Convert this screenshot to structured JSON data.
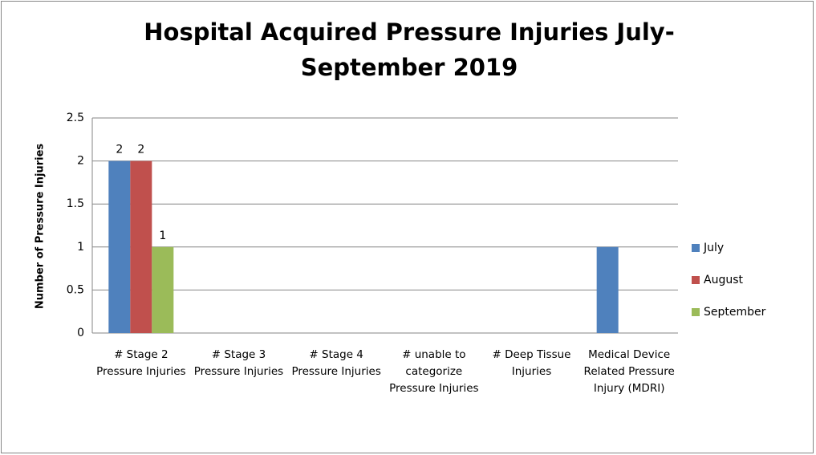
{
  "chart_data": {
    "type": "bar",
    "title": "Hospital Acquired Pressure Injuries July-September 2019",
    "y_label": "Number of Pressure Injuries",
    "categories": [
      "# Stage 2 Pressure Injuries",
      "# Stage 3 Pressure Injuries",
      "# Stage 4 Pressure Injuries",
      "# unable to categorize Pressure Injuries",
      "# Deep Tissue Injuries",
      "Medical Device Related Pressure Injury (MDRI)"
    ],
    "series": [
      {
        "name": "July",
        "color": "#4f81bd",
        "values": [
          2,
          0,
          0,
          0,
          0,
          1
        ],
        "value_labels": [
          "2",
          null,
          null,
          null,
          null,
          null
        ]
      },
      {
        "name": "August",
        "color": "#c0504d",
        "values": [
          2,
          0,
          0,
          0,
          0,
          0
        ],
        "value_labels": [
          "2",
          null,
          null,
          null,
          null,
          null
        ]
      },
      {
        "name": "September",
        "color": "#9bbb59",
        "values": [
          1,
          0,
          0,
          0,
          0,
          0
        ],
        "value_labels": [
          "1",
          null,
          null,
          null,
          null,
          null
        ]
      }
    ],
    "ylim": [
      0,
      2.5
    ],
    "yticks": [
      0,
      0.5,
      1,
      1.5,
      2,
      2.5
    ],
    "grid": true,
    "legend": "right"
  }
}
